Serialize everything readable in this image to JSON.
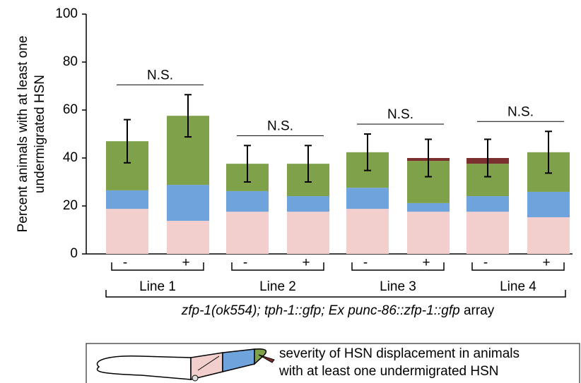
{
  "chart_data": {
    "type": "stacked_bar",
    "y_label": [
      "Percent animals with at least one",
      "undermigrated HSN"
    ],
    "categories": [
      "-",
      "+",
      "-",
      "+",
      "-",
      "+",
      "-",
      "+"
    ],
    "groups": [
      "Line 1",
      "Line 2",
      "Line 3",
      "Line 4"
    ],
    "x_label": {
      "italic": "zfp-1(ok554); tph-1::gfp; Ex punc-86::zfp-1::gfp",
      "plain": "array"
    },
    "series": [
      {
        "color": "#f2cfcc",
        "values": [
          18.8,
          13.8,
          17.6,
          17.6,
          18.8,
          17.6,
          17.6,
          15.3
        ]
      },
      {
        "color": "#6fa3dc",
        "values": [
          7.7,
          15,
          8.6,
          6.5,
          8.8,
          3.6,
          6.5,
          10.6
        ]
      },
      {
        "color": "#7fa14a",
        "values": [
          20.5,
          28.8,
          11.4,
          13.5,
          14.8,
          17.6,
          13.5,
          16.5
        ]
      },
      {
        "color": "#7b2f2f",
        "values": [
          0,
          0,
          0,
          0,
          0,
          1.2,
          2.4,
          0
        ]
      }
    ],
    "errors": [
      9,
      8.8,
      7.6,
      7.6,
      7.6,
      7.8,
      7.8,
      8.7
    ],
    "annotations": [
      "N.S.",
      "N.S.",
      "N.S.",
      "N.S."
    ],
    "ylim": [
      0,
      100
    ],
    "yticks": [
      0,
      20,
      40,
      60,
      80,
      100
    ],
    "legend_text": [
      "severity of HSN displacement in animals",
      "with at least one undermigrated HSN"
    ]
  }
}
